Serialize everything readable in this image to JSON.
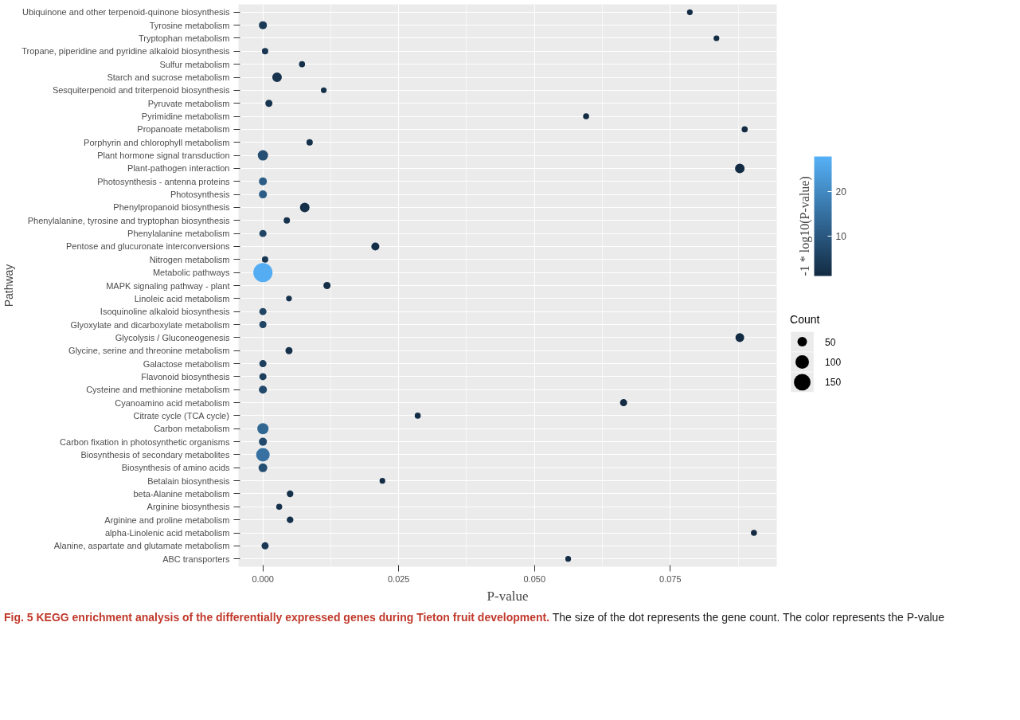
{
  "chart_data": {
    "type": "bubble",
    "orientation": "horizontal",
    "categories": [
      "Ubiquinone and other terpenoid-quinone biosynthesis",
      "Tyrosine metabolism",
      "Tryptophan metabolism",
      "Tropane, piperidine and pyridine alkaloid biosynthesis",
      "Sulfur metabolism",
      "Starch and sucrose metabolism",
      "Sesquiterpenoid and triterpenoid biosynthesis",
      "Pyruvate metabolism",
      "Pyrimidine metabolism",
      "Propanoate metabolism",
      "Porphyrin and chlorophyll metabolism",
      "Plant hormone signal transduction",
      "Plant-pathogen interaction",
      "Photosynthesis - antenna proteins",
      "Photosynthesis",
      "Phenylpropanoid biosynthesis",
      "Phenylalanine, tyrosine and tryptophan biosynthesis",
      "Phenylalanine metabolism",
      "Pentose and glucuronate interconversions",
      "Nitrogen metabolism",
      "Metabolic pathways",
      "MAPK signaling pathway - plant",
      "Linoleic acid metabolism",
      "Isoquinoline alkaloid biosynthesis",
      "Glyoxylate and dicarboxylate metabolism",
      "Glycolysis / Gluconeogenesis",
      "Glycine, serine and threonine metabolism",
      "Galactose metabolism",
      "Flavonoid biosynthesis",
      "Cysteine and methionine metabolism",
      "Cyanoamino acid metabolism",
      "Citrate cycle (TCA cycle)",
      "Carbon metabolism",
      "Carbon fixation in photosynthetic organisms",
      "Biosynthesis of secondary metabolites",
      "Biosynthesis of amino acids",
      "Betalain biosynthesis",
      "beta-Alanine metabolism",
      "Arginine biosynthesis",
      "Arginine and proline metabolism",
      "alpha-Linolenic acid metabolism",
      "Alanine, aspartate and glutamate metabolism",
      "ABC transporters"
    ],
    "values": [
      0.0786,
      0.0,
      0.0835,
      0.0004,
      0.0072,
      0.0026,
      0.0112,
      0.0011,
      0.0595,
      0.0887,
      0.0086,
      0.0,
      0.0878,
      0.0,
      0.0,
      0.0077,
      0.0044,
      0.0,
      0.0207,
      0.0004,
      0.0,
      0.0118,
      0.0048,
      0.0,
      0.0,
      0.0878,
      0.0048,
      0.0,
      0.0,
      0.0,
      0.0664,
      0.0285,
      0.0,
      0.0,
      0.0,
      0.0,
      0.022,
      0.005,
      0.003,
      0.005,
      0.0904,
      0.0004,
      0.0562
    ],
    "sizes": [
      18,
      35,
      18,
      22,
      20,
      50,
      18,
      28,
      20,
      20,
      22,
      58,
      50,
      35,
      35,
      50,
      22,
      28,
      35,
      22,
      200,
      28,
      18,
      28,
      28,
      42,
      28,
      28,
      28,
      35,
      28,
      20,
      68,
      35,
      100,
      42,
      18,
      24,
      20,
      24,
      20,
      28,
      18
    ],
    "cvalues": [
      1.1,
      4,
      1.1,
      3.4,
      2.1,
      2.6,
      2.0,
      3.0,
      1.2,
      1.1,
      2.1,
      8,
      1.1,
      11,
      11,
      2.1,
      2.4,
      6,
      1.7,
      3.4,
      27,
      1.9,
      2.3,
      6,
      6,
      1.1,
      2.3,
      5,
      5,
      7,
      1.2,
      1.6,
      13,
      7,
      15,
      8,
      1.7,
      2.3,
      2.5,
      2.3,
      1.0,
      3.4,
      1.3
    ],
    "xlim": [
      -0.0045,
      0.0946
    ],
    "xticks": [
      {
        "value": 0,
        "label": "0.000"
      },
      {
        "value": 0.025,
        "label": "0.025"
      },
      {
        "value": 0.05,
        "label": "0.050"
      },
      {
        "value": 0.075,
        "label": "0.075"
      }
    ],
    "xlabel": "P-value",
    "ylabel": "Pathway",
    "clabel": "-1 * log10(P-value)",
    "clim": [
      1.0,
      27.8
    ],
    "cticks": [
      10,
      20
    ],
    "legend_title": "Count",
    "size_legend": [
      50,
      100,
      150
    ],
    "grid": true,
    "annotations": [
      "Fig. 5 KEGG enrichment analysis of the differentially expressed genes during Tieton fruit development.",
      "The size of the dot represents the gene count. The color represents the P-value"
    ]
  }
}
